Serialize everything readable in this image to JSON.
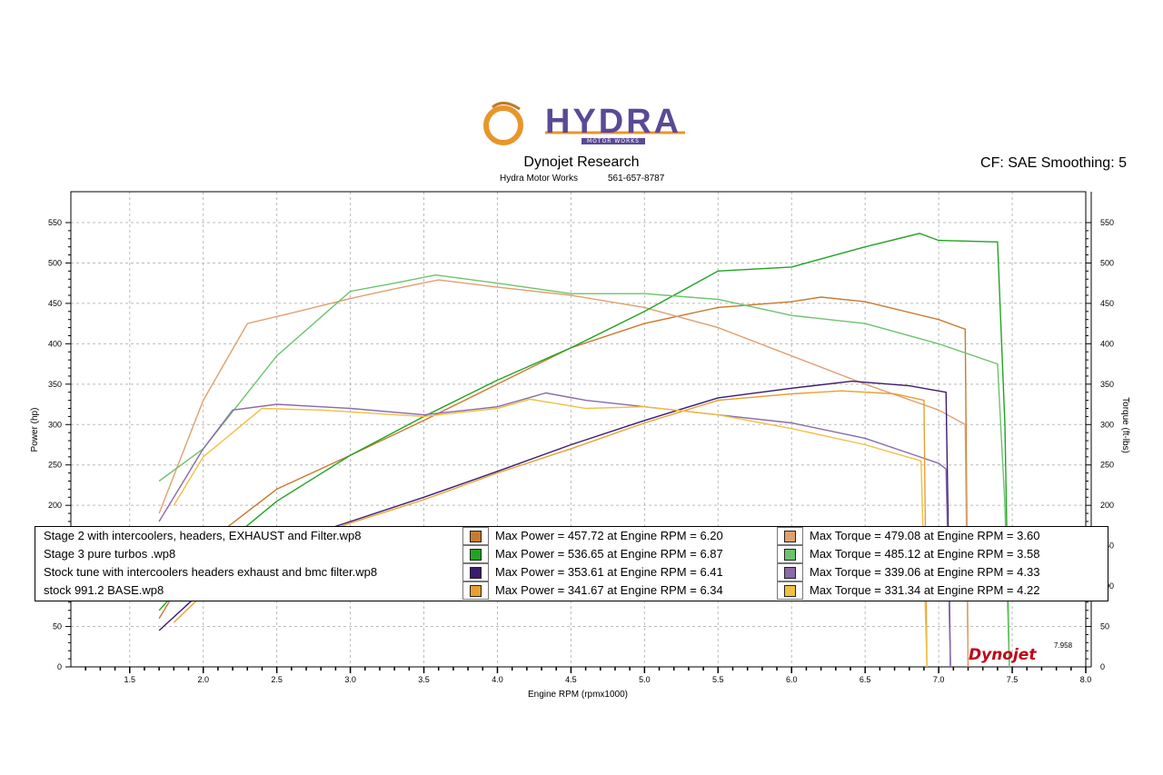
{
  "header": {
    "logo_text": "HYDRA",
    "logo_sub": "MOTOR WORKS",
    "title": "Dynojet Research",
    "shop": "Hydra Motor Works",
    "phone": "561-657-8787",
    "correction": "CF: SAE Smoothing: 5",
    "brand": "Dynojet",
    "end_rpm": "7.958"
  },
  "colors": {
    "stage2": "#c97a2e",
    "stage3": "#22a322",
    "stocktune": "#3c1a6e",
    "stock": "#e8a030",
    "stage2_torque": "#e0a070",
    "stage3_torque": "#6cc36c",
    "stocktune_torque": "#8a6aaa",
    "stock_torque": "#f0c040"
  },
  "legend": [
    {
      "name": "Stage 2 with intercoolers, headers, EXHAUST and Filter.wp8",
      "power": "Max Power = 457.72 at Engine RPM = 6.20",
      "torque": "Max Torque = 479.08 at Engine RPM = 3.60",
      "pc": "#c97a2e",
      "tc": "#e0a070"
    },
    {
      "name": "Stage 3 pure turbos .wp8",
      "power": "Max Power = 536.65 at Engine RPM = 6.87",
      "torque": "Max Torque = 485.12 at Engine RPM = 3.58",
      "pc": "#22a322",
      "tc": "#6cc36c"
    },
    {
      "name": "Stock tune with intercoolers headers exhaust and bmc filter.wp8",
      "power": "Max Power = 353.61 at Engine RPM = 6.41",
      "torque": "Max Torque = 339.06 at Engine RPM = 4.33",
      "pc": "#3c1a6e",
      "tc": "#8a6aaa"
    },
    {
      "name": "stock 991.2 BASE.wp8",
      "power": "Max Power = 341.67 at Engine RPM = 6.34",
      "torque": "Max Torque = 331.34 at Engine RPM = 4.22",
      "pc": "#e8a030",
      "tc": "#f0c040"
    }
  ],
  "chart_data": {
    "type": "line",
    "xlabel": "Engine RPM (rpmx1000)",
    "ylabel": "Power (hp)",
    "y2label": "Torque (ft-lbs)",
    "xlim": [
      1.1,
      8.0
    ],
    "ylim": [
      0,
      550
    ],
    "x_ticks": [
      "1.5",
      "2.0",
      "2.5",
      "3.0",
      "3.5",
      "4.0",
      "4.5",
      "5.0",
      "5.5",
      "6.0",
      "6.5",
      "7.0",
      "7.5",
      "8.0"
    ],
    "y_ticks": [
      "0",
      "50",
      "100",
      "150",
      "200",
      "250",
      "300",
      "350",
      "400",
      "450",
      "500",
      "550"
    ],
    "grid": true,
    "series": [
      {
        "name": "Stage 2 with intercoolers, headers, EXHAUST and Filter.wp8",
        "key": "stage2_power",
        "color": "#c97a2e",
        "x": [
          1.7,
          2.0,
          2.5,
          3.0,
          3.5,
          4.0,
          4.5,
          5.0,
          5.5,
          6.0,
          6.2,
          6.5,
          7.0,
          7.18,
          7.2
        ],
        "y": [
          60,
          150,
          220,
          262,
          305,
          350,
          395,
          425,
          445,
          452,
          457.72,
          452,
          430,
          418,
          0
        ]
      },
      {
        "name": "Stage 2 with intercoolers, headers, EXHAUST and Filter.wp8",
        "key": "stage2_torque",
        "color": "#e0a070",
        "x": [
          1.7,
          2.0,
          2.3,
          2.6,
          3.0,
          3.3,
          3.6,
          4.0,
          4.5,
          5.0,
          5.5,
          6.0,
          6.5,
          7.0,
          7.18,
          7.2
        ],
        "y": [
          190,
          330,
          425,
          438,
          456,
          468,
          479.08,
          470,
          460,
          445,
          420,
          385,
          350,
          318,
          300,
          0
        ]
      },
      {
        "name": "Stage 3 pure turbos .wp8",
        "key": "stage3_power",
        "color": "#22a322",
        "x": [
          1.7,
          2.0,
          2.5,
          3.0,
          3.5,
          4.0,
          4.5,
          5.0,
          5.5,
          6.0,
          6.5,
          6.87,
          7.0,
          7.4,
          7.45,
          7.48
        ],
        "y": [
          70,
          130,
          205,
          262,
          310,
          355,
          395,
          440,
          490,
          495,
          520,
          536.65,
          528,
          526,
          300,
          0
        ]
      },
      {
        "name": "Stage 3 pure turbos .wp8",
        "key": "stage3_torque",
        "color": "#6cc36c",
        "x": [
          1.7,
          2.0,
          2.5,
          3.0,
          3.3,
          3.58,
          4.0,
          4.5,
          5.0,
          5.5,
          6.0,
          6.5,
          7.0,
          7.4,
          7.45,
          7.48
        ],
        "y": [
          230,
          270,
          385,
          465,
          475,
          485.12,
          475,
          462,
          462,
          455,
          435,
          425,
          400,
          375,
          200,
          0
        ]
      },
      {
        "name": "Stock tune with intercoolers headers exhaust and bmc filter.wp8",
        "key": "stocktune_power",
        "color": "#3c1a6e",
        "x": [
          1.7,
          2.0,
          2.5,
          3.0,
          3.5,
          4.0,
          4.5,
          5.0,
          5.5,
          6.0,
          6.41,
          6.8,
          7.05,
          7.08
        ],
        "y": [
          45,
          95,
          150,
          180,
          210,
          242,
          275,
          305,
          333,
          345,
          353.61,
          348,
          340,
          0
        ]
      },
      {
        "name": "Stock tune with intercoolers headers exhaust and bmc filter.wp8",
        "key": "stocktune_torque",
        "color": "#8a6aaa",
        "x": [
          1.7,
          2.0,
          2.2,
          2.5,
          3.0,
          3.5,
          4.0,
          4.33,
          4.6,
          5.0,
          5.5,
          6.0,
          6.5,
          7.0,
          7.05,
          7.08
        ],
        "y": [
          180,
          270,
          318,
          325,
          320,
          312,
          322,
          339.06,
          330,
          322,
          312,
          302,
          283,
          252,
          245,
          0
        ]
      },
      {
        "name": "stock 991.2 BASE.wp8",
        "key": "stock_power",
        "color": "#e8a030",
        "x": [
          1.8,
          2.0,
          2.5,
          3.0,
          3.5,
          4.0,
          4.5,
          5.0,
          5.5,
          6.0,
          6.34,
          6.7,
          6.9,
          6.92
        ],
        "y": [
          55,
          90,
          145,
          178,
          207,
          240,
          270,
          302,
          330,
          338,
          341.67,
          338,
          330,
          0
        ]
      },
      {
        "name": "stock 991.2 BASE.wp8",
        "key": "stock_torque",
        "color": "#f0c040",
        "x": [
          1.8,
          2.0,
          2.4,
          2.8,
          3.5,
          4.0,
          4.22,
          4.6,
          5.0,
          5.5,
          6.0,
          6.5,
          6.88,
          6.92
        ],
        "y": [
          200,
          260,
          320,
          318,
          310,
          320,
          331.34,
          320,
          322,
          312,
          295,
          275,
          255,
          0
        ]
      }
    ]
  }
}
